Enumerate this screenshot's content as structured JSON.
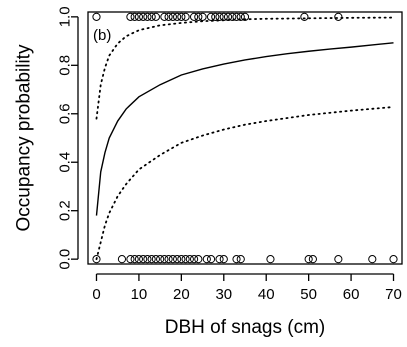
{
  "chart_data": {
    "type": "scatter",
    "panel_label": "(b)",
    "xlabel": "DBH of snags (cm)",
    "ylabel": "Occupancy probability",
    "xlim": [
      -2,
      72
    ],
    "ylim": [
      -0.02,
      1.02
    ],
    "x_ticks": [
      0,
      10,
      20,
      30,
      40,
      50,
      60,
      70
    ],
    "x_tick_labels": [
      "0",
      "10",
      "20",
      "30",
      "40",
      "50",
      "60",
      "70"
    ],
    "y_ticks": [
      0.0,
      0.2,
      0.4,
      0.6,
      0.8,
      1.0
    ],
    "y_tick_labels": [
      "0.0",
      "0.2",
      "0.4",
      "0.6",
      "0.8",
      "1.0"
    ],
    "grid": false,
    "observations_present": [
      0,
      8,
      9,
      10,
      11,
      12,
      13,
      14,
      16,
      17,
      18,
      19,
      20,
      21,
      23,
      24,
      25,
      27,
      28,
      29,
      30,
      31,
      32,
      33,
      34,
      35,
      49,
      57
    ],
    "observations_absent": [
      0,
      6,
      8,
      9,
      10,
      11,
      12,
      13,
      14,
      15,
      16,
      17,
      18,
      19,
      20,
      21,
      22,
      23,
      24,
      26,
      27,
      29,
      30,
      33,
      34,
      41,
      50,
      51,
      57,
      65,
      70
    ],
    "fitted_curve": {
      "x": [
        0,
        1,
        2,
        3,
        5,
        7,
        10,
        15,
        20,
        25,
        30,
        35,
        40,
        45,
        50,
        55,
        60,
        65,
        70
      ],
      "y": [
        0.18,
        0.36,
        0.44,
        0.5,
        0.57,
        0.62,
        0.67,
        0.72,
        0.76,
        0.785,
        0.805,
        0.822,
        0.836,
        0.848,
        0.858,
        0.867,
        0.875,
        0.884,
        0.893
      ]
    },
    "ci_upper": {
      "x": [
        0,
        1,
        2,
        3,
        5,
        7,
        10,
        15,
        20,
        25,
        30,
        35,
        40,
        50,
        60,
        70
      ],
      "y": [
        0.58,
        0.72,
        0.79,
        0.84,
        0.89,
        0.92,
        0.945,
        0.965,
        0.975,
        0.982,
        0.986,
        0.99,
        0.992,
        0.994,
        0.996,
        0.997
      ]
    },
    "ci_lower": {
      "x": [
        0,
        1,
        2,
        3,
        5,
        7,
        10,
        15,
        20,
        25,
        30,
        35,
        40,
        50,
        60,
        70
      ],
      "y": [
        0.0,
        0.07,
        0.14,
        0.19,
        0.26,
        0.31,
        0.37,
        0.43,
        0.48,
        0.51,
        0.535,
        0.555,
        0.57,
        0.595,
        0.613,
        0.628
      ]
    }
  }
}
